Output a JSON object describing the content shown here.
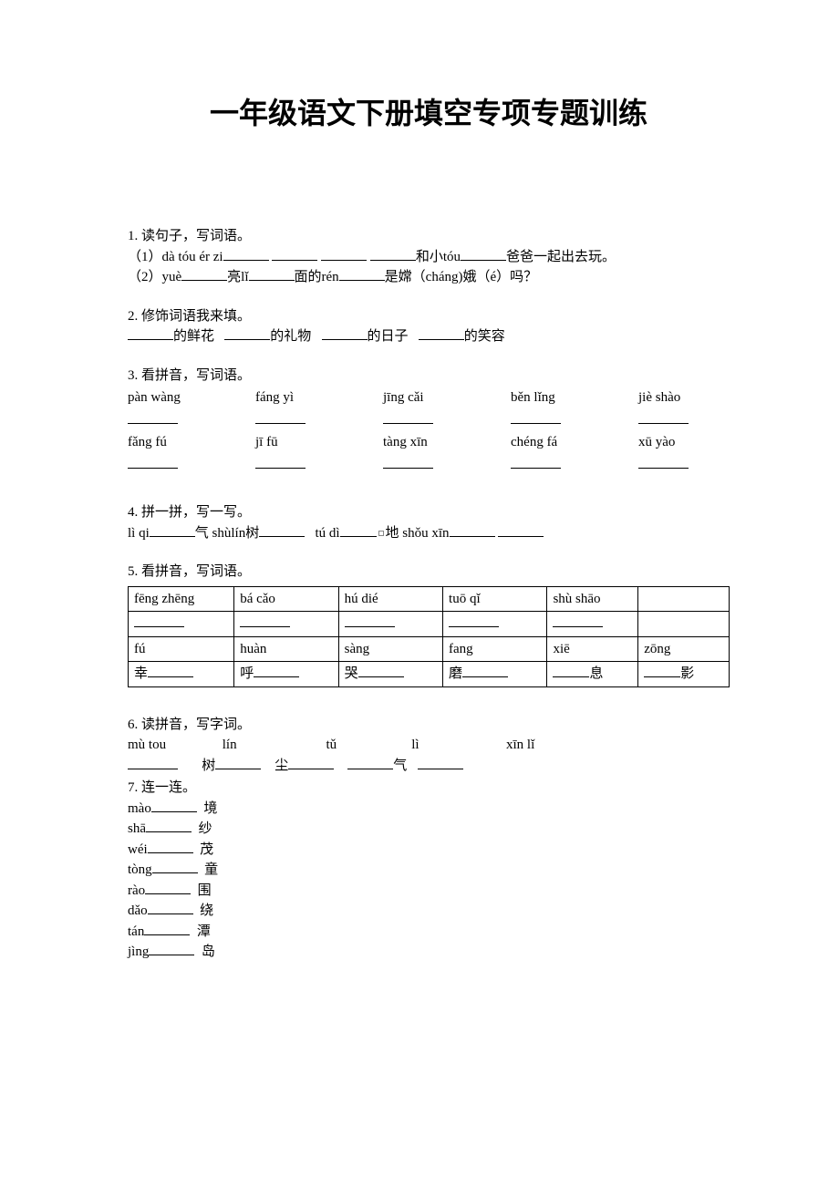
{
  "colors": {
    "text": "#000000",
    "bg": "#ffffff",
    "border": "#000000"
  },
  "title": "一年级语文下册填空专项专题训练",
  "q1": {
    "head": "1. 读句子，写词语。",
    "line1_a": "（1）dà tóu ér zi",
    "line1_b": "和小tóu",
    "line1_c": "爸爸一起出去玩。",
    "line2_a": "（2）yuè",
    "line2_b": "亮lǐ",
    "line2_c": "面的rén",
    "line2_d": "是嫦（cháng)娥（é）吗？"
  },
  "q2": {
    "head": "2. 修饰词语我来填。",
    "items": [
      "的鲜花",
      "的礼物",
      "的日子",
      "的笑容"
    ]
  },
  "q3": {
    "head": "3. 看拼音，写词语。",
    "row1": [
      "pàn wàng",
      "fáng yì",
      "jīng cǎi",
      "běn lǐng",
      "jiè shào"
    ],
    "row2": [
      "fǎng fú",
      "jī fū",
      "tàng xīn",
      "chéng fá",
      "xū yào"
    ]
  },
  "q4": {
    "head": "4. 拼一拼，写一写。",
    "p1": "lì qi",
    "t1": "气  shùlín树",
    "p2": "tú dì",
    "t2": "地  shǒu xīn"
  },
  "q5": {
    "head": "5. 看拼音，写词语。",
    "r1": [
      "fēng  zhēng",
      "bá  cǎo",
      "hú  dié",
      "tuō  qǐ",
      "shù  shāo",
      ""
    ],
    "r3": [
      "fú",
      "huàn",
      "sàng",
      "fang",
      "xiē",
      "zōng"
    ],
    "r4": [
      "幸",
      "呼",
      "哭",
      "磨",
      "息",
      "影"
    ],
    "r4_prefix": [
      true,
      true,
      true,
      true,
      false,
      false
    ]
  },
  "q6": {
    "head": "6. 读拼音，写字词。",
    "row1": [
      "mù  tou",
      "lín",
      "tǔ",
      "lì",
      "xīn  lǐ"
    ],
    "row2_labels": [
      "树",
      "尘",
      "气",
      ""
    ]
  },
  "q7": {
    "head": "7. 连一连。",
    "pairs": [
      [
        "mào",
        "境"
      ],
      [
        "shā",
        "纱"
      ],
      [
        "wéi",
        "茂"
      ],
      [
        "tòng",
        "童"
      ],
      [
        "rào",
        "围"
      ],
      [
        "dǎo",
        "绕"
      ],
      [
        "tán",
        "潭"
      ],
      [
        "jìng",
        "岛"
      ]
    ]
  }
}
